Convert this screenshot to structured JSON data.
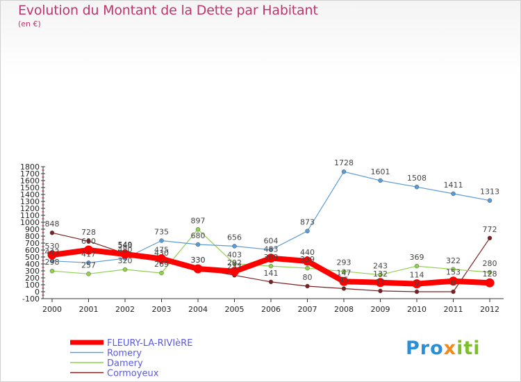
{
  "title": "Evolution du Montant de la Dette par Habitant",
  "subtitle": "(en €)",
  "brand": {
    "p1": "Pro",
    "p2": "x",
    "p3": "iti"
  },
  "chart_data": {
    "type": "line",
    "title": "Evolution du Montant de la Dette par Habitant",
    "ylabel": "(en €)",
    "x": [
      "2000",
      "2001",
      "2002",
      "2003",
      "2004",
      "2005",
      "2006",
      "2007",
      "2008",
      "2009",
      "2010",
      "2011",
      "2012"
    ],
    "yticks": [
      "-100",
      "0",
      "100",
      "200",
      "300",
      "400",
      "500",
      "600",
      "700",
      "800",
      "900",
      "1000",
      "1100",
      "1200",
      "1300",
      "1400",
      "1500",
      "1600",
      "1700",
      "1800"
    ],
    "ylim": [
      -100,
      1800
    ],
    "grid": false,
    "legend": "bottom-left",
    "series": [
      {
        "name": "FLEURY-LA-RIVIèRE",
        "color": "#ff0000",
        "values": [
          530,
          600,
          540,
          475,
          330,
          292,
          483,
          440,
          147,
          132,
          114,
          153,
          128
        ]
      },
      {
        "name": "Romery",
        "color": "#5b9bd5",
        "values": [
          443,
          417,
          480,
          735,
          680,
          656,
          604,
          873,
          1728,
          1601,
          1508,
          1411,
          1313
        ]
      },
      {
        "name": "Damery",
        "color": "#8fd14f",
        "values": [
          298,
          257,
          320,
          269,
          897,
          403,
          369,
          339,
          293,
          243,
          369,
          322,
          280
        ]
      },
      {
        "name": "Cormoyeux",
        "color": "#7b2020",
        "values": [
          848,
          728,
          549,
          430,
          330,
          237,
          141,
          80,
          45,
          11,
          0,
          0,
          772
        ]
      }
    ],
    "point_labels": [
      [
        "530",
        "600",
        "540",
        "475",
        "330",
        "292",
        "483",
        "440",
        "147",
        "132",
        "114",
        "153",
        "128"
      ],
      [
        "443",
        "417",
        "480",
        "735",
        "680",
        "656",
        "604",
        "873",
        "1728",
        "1601",
        "1508",
        "1411",
        "1313"
      ],
      [
        "298",
        "257",
        "320",
        "269",
        "897",
        "403",
        "369",
        "339",
        "293",
        "243",
        "369",
        "322",
        "280"
      ],
      [
        "848",
        "728",
        "549",
        "430",
        "330",
        "237",
        "141",
        "80",
        "45",
        "11",
        "0",
        "0",
        "772"
      ]
    ]
  }
}
